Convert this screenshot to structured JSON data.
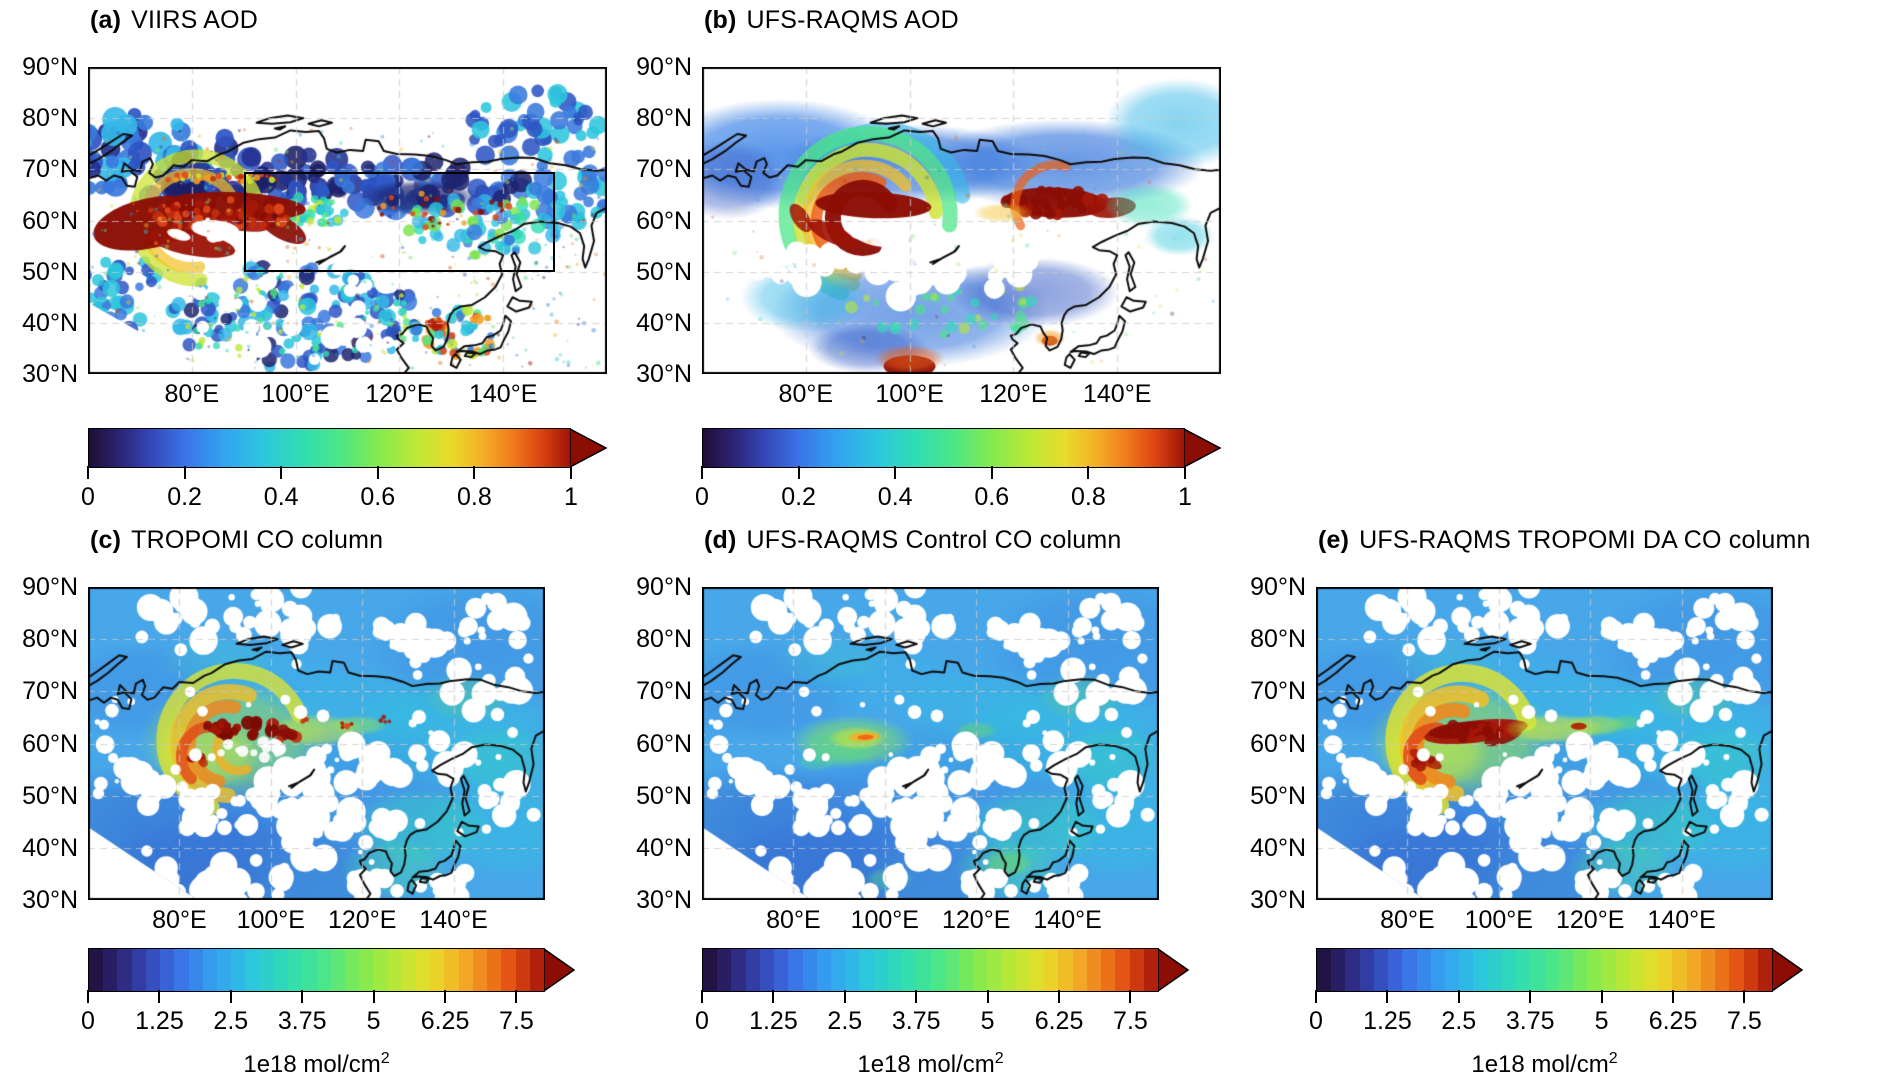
{
  "figure": {
    "background": "#ffffff",
    "text_color": "#000000",
    "colors": {
      "colormap_stops": [
        [
          0,
          "#1d0e35"
        ],
        [
          0.06,
          "#2c2270"
        ],
        [
          0.13,
          "#3448b8"
        ],
        [
          0.2,
          "#3a74e8"
        ],
        [
          0.28,
          "#33a3f0"
        ],
        [
          0.36,
          "#2cc6dd"
        ],
        [
          0.44,
          "#2fddb4"
        ],
        [
          0.52,
          "#4ce687"
        ],
        [
          0.6,
          "#83ea4f"
        ],
        [
          0.68,
          "#bce836"
        ],
        [
          0.75,
          "#e8dc2b"
        ],
        [
          0.82,
          "#f3ae27"
        ],
        [
          0.88,
          "#ef7c1c"
        ],
        [
          0.94,
          "#dc4412"
        ],
        [
          1,
          "#a01408"
        ]
      ],
      "arrow": "#8b0d04",
      "coast": "#0d0d0d",
      "grid": "#c9c9c9"
    },
    "panels": [
      {
        "id": "a",
        "index_label": "(a)",
        "title": "VIIRS AOD",
        "row": 0,
        "map_style": "satellite-aod",
        "lat_ticks": [
          "90°N",
          "80°N",
          "70°N",
          "60°N",
          "50°N",
          "40°N",
          "30°N"
        ],
        "lon_ticks": [
          "80°E",
          "100°E",
          "120°E",
          "140°E"
        ],
        "colorbar": {
          "ticks": [
            "0",
            "0.2",
            "0.4",
            "0.6",
            "0.8",
            "1"
          ]
        },
        "study_box": {
          "lon_min": 90,
          "lon_max": 150,
          "lat_min": 50,
          "lat_max": 69.5
        }
      },
      {
        "id": "b",
        "index_label": "(b)",
        "title": "UFS-RAQMS AOD",
        "row": 0,
        "map_style": "model-aod",
        "lat_ticks": [
          "90°N",
          "80°N",
          "70°N",
          "60°N",
          "50°N",
          "40°N",
          "30°N"
        ],
        "lon_ticks": [
          "80°E",
          "100°E",
          "120°E",
          "140°E"
        ],
        "colorbar": {
          "ticks": [
            "0",
            "0.2",
            "0.4",
            "0.6",
            "0.8",
            "1"
          ]
        }
      },
      {
        "id": "c",
        "index_label": "(c)",
        "title": "TROPOMI CO column",
        "row": 1,
        "map_style": "tropomi-co",
        "lat_ticks": [
          "90°N",
          "80°N",
          "70°N",
          "60°N",
          "50°N",
          "40°N",
          "30°N"
        ],
        "lon_ticks": [
          "80°E",
          "100°E",
          "120°E",
          "140°E"
        ],
        "colorbar": {
          "ticks": [
            "0",
            "1.25",
            "2.5",
            "3.75",
            "5",
            "6.25",
            "7.5"
          ],
          "unit_main": "1e18 mol/cm",
          "unit_sup": "2"
        }
      },
      {
        "id": "d",
        "index_label": "(d)",
        "title": "UFS-RAQMS Control CO column",
        "row": 1,
        "map_style": "control-co",
        "lat_ticks": [
          "90°N",
          "80°N",
          "70°N",
          "60°N",
          "50°N",
          "40°N",
          "30°N"
        ],
        "lon_ticks": [
          "80°E",
          "100°E",
          "120°E",
          "140°E"
        ],
        "colorbar": {
          "ticks": [
            "0",
            "1.25",
            "2.5",
            "3.75",
            "5",
            "6.25",
            "7.5"
          ],
          "unit_main": "1e18 mol/cm",
          "unit_sup": "2"
        }
      },
      {
        "id": "e",
        "index_label": "(e)",
        "title": "UFS-RAQMS TROPOMI DA CO column",
        "row": 1,
        "map_style": "da-co",
        "lat_ticks": [
          "90°N",
          "80°N",
          "70°N",
          "60°N",
          "50°N",
          "40°N",
          "30°N"
        ],
        "lon_ticks": [
          "80°E",
          "100°E",
          "120°E",
          "140°E"
        ],
        "colorbar": {
          "ticks": [
            "0",
            "1.25",
            "2.5",
            "3.75",
            "5",
            "6.25",
            "7.5"
          ],
          "unit_main": "1e18 mol/cm",
          "unit_sup": "2"
        }
      }
    ]
  },
  "chart_data": {
    "type": "heatmap",
    "description": "Five lat-lon map panels comparing satellite-observed and UFS-RAQMS modeled Siberian wildfire smoke: aerosol optical depth (top row) and CO total column (bottom row).",
    "x_axis": {
      "label": "longitude",
      "range_deg_east": [
        60,
        160
      ],
      "tick_values": [
        80,
        100,
        120,
        140
      ],
      "tick_labels": [
        "80°E",
        "100°E",
        "120°E",
        "140°E"
      ]
    },
    "y_axis": {
      "label": "latitude",
      "range_deg_north": [
        30,
        90
      ],
      "tick_values": [
        90,
        80,
        70,
        60,
        50,
        40,
        30
      ],
      "tick_labels": [
        "90°N",
        "80°N",
        "70°N",
        "60°N",
        "50°N",
        "40°N",
        "30°N"
      ]
    },
    "grid": "dashed light-gray graticule every 10 deg latitude and 20 deg longitude",
    "panels": [
      {
        "label": "(a)",
        "title": "VIIRS AOD",
        "quantity": "aerosol optical depth (observed)",
        "features": "intense smoke plume with AOD >= 1 (dark red) spiraling over western/central Siberia ~50-68N, 65-115E; blue background AOD ~0.05-0.3; white = no retrieval; black study box ~90-150E, 50-69.5N"
      },
      {
        "label": "(b)",
        "title": "UFS-RAQMS AOD",
        "quantity": "aerosol optical depth (model)",
        "features": "smooth modeled plume spiral near 60N, 75-110E plus strong secondary maximum 118-142E at 60-66N"
      },
      {
        "label": "(c)",
        "title": "TROPOMI CO column",
        "quantity": "CO total column (observed)",
        "features": "CO enhancements 4-8+ x10^18 mol/cm2 in plume 55-65N, 75-110E over ~2-3 background; white = cloud/no-data gaps"
      },
      {
        "label": "(d)",
        "title": "UFS-RAQMS Control CO column",
        "quantity": "CO total column (model, no assimilation)",
        "features": "weak enhancement ~3-5 x10^18 mol/cm2 near 60N, 85-100E; plume strongly underestimated"
      },
      {
        "label": "(e)",
        "title": "UFS-RAQMS TROPOMI DA CO column",
        "quantity": "CO total column (model with TROPOMI data assimilation)",
        "features": "strong plume 5-8+ x10^18 mol/cm2 near 60N, 80-110E extending east to ~127E, close to TROPOMI observations"
      }
    ],
    "aod_colorbar": {
      "min": 0,
      "max": 1,
      "ticks": [
        0,
        0.2,
        0.4,
        0.6,
        0.8,
        1
      ],
      "style": "continuous rainbow (dark purple - blue - cyan - green - yellow - orange - dark red) with right-pointing overflow arrow"
    },
    "co_colorbar": {
      "min": 0,
      "max": 8,
      "ticks": [
        0,
        1.25,
        2.5,
        3.75,
        5,
        6.25,
        7.5
      ],
      "unit": "1e18 mol/cm2",
      "style": "32 discrete rainbow bins with right-pointing overflow arrow"
    }
  }
}
